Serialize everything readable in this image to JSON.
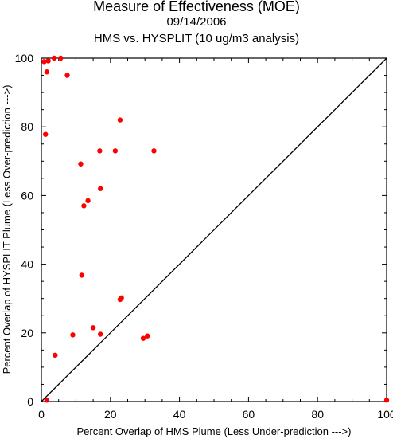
{
  "chart_data": {
    "type": "scatter",
    "title": "Measure of Effectiveness (MOE)",
    "subtitle": "09/14/2006",
    "subtitle2": "HMS vs. HYSPLIT  (10 ug/m3 analysis)",
    "xlabel": "Percent Overlap of HMS Plume (Less Under-prediction --->)",
    "ylabel": "Percent Overlap of HYSPLIT Plume (Less Over-prediction --->)",
    "xlim": [
      0,
      100
    ],
    "ylim": [
      0,
      100
    ],
    "xticks": [
      0,
      20,
      40,
      60,
      80,
      100
    ],
    "yticks": [
      0,
      20,
      40,
      60,
      80,
      100
    ],
    "grid": false,
    "reference_line": [
      [
        0,
        0
      ],
      [
        100,
        100
      ]
    ],
    "point_color": "#ff0000",
    "points": [
      {
        "x": 0.8,
        "y": 99.0
      },
      {
        "x": 2.0,
        "y": 99.2
      },
      {
        "x": 3.7,
        "y": 100.0
      },
      {
        "x": 5.6,
        "y": 100.0
      },
      {
        "x": 1.6,
        "y": 96.0
      },
      {
        "x": 7.5,
        "y": 95.0
      },
      {
        "x": 22.8,
        "y": 82.0
      },
      {
        "x": 1.2,
        "y": 77.8
      },
      {
        "x": 16.9,
        "y": 73.0
      },
      {
        "x": 21.4,
        "y": 73.0
      },
      {
        "x": 32.6,
        "y": 73.0
      },
      {
        "x": 11.4,
        "y": 69.2
      },
      {
        "x": 17.1,
        "y": 62.0
      },
      {
        "x": 13.5,
        "y": 58.5
      },
      {
        "x": 12.3,
        "y": 57.0
      },
      {
        "x": 11.7,
        "y": 36.8
      },
      {
        "x": 22.8,
        "y": 29.7
      },
      {
        "x": 23.2,
        "y": 30.2
      },
      {
        "x": 15.0,
        "y": 21.5
      },
      {
        "x": 9.1,
        "y": 19.4
      },
      {
        "x": 17.1,
        "y": 19.6
      },
      {
        "x": 29.5,
        "y": 18.4
      },
      {
        "x": 30.7,
        "y": 19.1
      },
      {
        "x": 4.0,
        "y": 13.5
      },
      {
        "x": 1.6,
        "y": 0.4
      },
      {
        "x": 100.0,
        "y": 0.4
      }
    ]
  }
}
